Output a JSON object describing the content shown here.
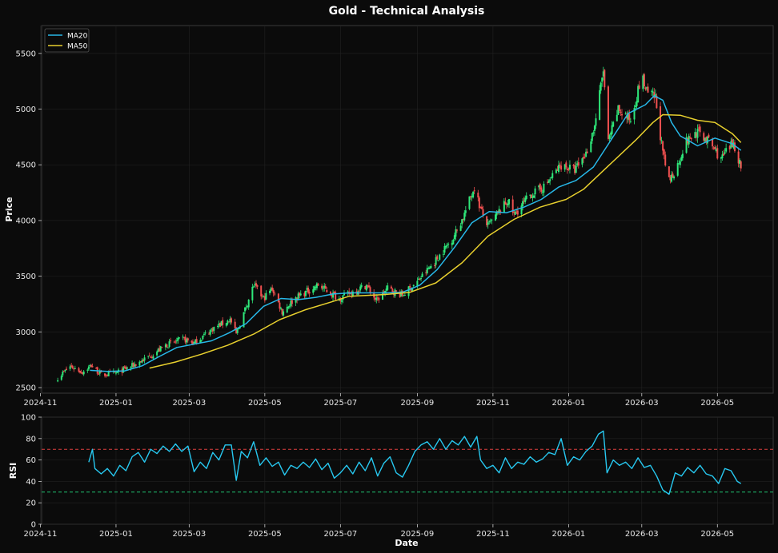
{
  "colors": {
    "background": "#0b0b0b",
    "frame": "#3a3a3a",
    "grid": "#222222",
    "up": "#2ee87a",
    "down": "#f05050",
    "ma20": "#27b8e8",
    "ma50": "#e8d02e",
    "rsi": "#27c8f0",
    "overbought": "#e04040",
    "oversold": "#20c070"
  },
  "chart_data": [
    {
      "type": "candlestick",
      "title": "Gold - Technical Analysis",
      "ylabel": "Price",
      "xlabel": "",
      "x_range": [
        "2024-11-02",
        "2026-06-15"
      ],
      "ylim": [
        2450,
        5750
      ],
      "yticks": [
        2500,
        3000,
        3500,
        4000,
        4500,
        5000,
        5500
      ],
      "xticks": [
        "2024-11-01",
        "2025-01-01",
        "2025-03-01",
        "2025-05-01",
        "2025-07-01",
        "2025-09-01",
        "2025-11-01",
        "2026-01-01",
        "2026-03-01",
        "2026-05-01"
      ],
      "xtick_labels": [
        "2024-11",
        "2025-01",
        "2025-03",
        "2025-05",
        "2025-07",
        "2025-09",
        "2025-11",
        "2026-01",
        "2026-03",
        "2026-05"
      ],
      "grid": true,
      "legend_position": "top-left",
      "price_path": [
        [
          "2024-11-15",
          2590
        ],
        [
          "2024-11-25",
          2690
        ],
        [
          "2024-12-05",
          2640
        ],
        [
          "2024-12-12",
          2700
        ],
        [
          "2024-12-20",
          2615
        ],
        [
          "2025-01-01",
          2630
        ],
        [
          "2025-01-15",
          2700
        ],
        [
          "2025-01-31",
          2800
        ],
        [
          "2025-02-10",
          2880
        ],
        [
          "2025-02-24",
          2935
        ],
        [
          "2025-03-05",
          2900
        ],
        [
          "2025-03-20",
          3030
        ],
        [
          "2025-04-03",
          3110
        ],
        [
          "2025-04-08",
          2980
        ],
        [
          "2025-04-22",
          3420
        ],
        [
          "2025-04-30",
          3300
        ],
        [
          "2025-05-07",
          3390
        ],
        [
          "2025-05-15",
          3180
        ],
        [
          "2025-05-25",
          3300
        ],
        [
          "2025-06-13",
          3420
        ],
        [
          "2025-06-30",
          3300
        ],
        [
          "2025-07-22",
          3420
        ],
        [
          "2025-07-30",
          3280
        ],
        [
          "2025-08-08",
          3390
        ],
        [
          "2025-08-20",
          3330
        ],
        [
          "2025-09-01",
          3450
        ],
        [
          "2025-09-15",
          3630
        ],
        [
          "2025-09-30",
          3850
        ],
        [
          "2025-10-08",
          4030
        ],
        [
          "2025-10-17",
          4300
        ],
        [
          "2025-10-22",
          4100
        ],
        [
          "2025-10-28",
          3950
        ],
        [
          "2025-11-13",
          4180
        ],
        [
          "2025-11-18",
          4050
        ],
        [
          "2025-12-01",
          4230
        ],
        [
          "2025-12-12",
          4300
        ],
        [
          "2025-12-26",
          4500
        ],
        [
          "2026-01-06",
          4450
        ],
        [
          "2026-01-15",
          4600
        ],
        [
          "2026-01-22",
          4850
        ],
        [
          "2026-01-29",
          5350
        ],
        [
          "2026-02-02",
          4700
        ],
        [
          "2026-02-10",
          5000
        ],
        [
          "2026-02-20",
          4900
        ],
        [
          "2026-03-01",
          5300
        ],
        [
          "2026-03-05",
          5150
        ],
        [
          "2026-03-12",
          5100
        ],
        [
          "2026-03-18",
          4600
        ],
        [
          "2026-03-23",
          4350
        ],
        [
          "2026-03-30",
          4500
        ],
        [
          "2026-04-05",
          4700
        ],
        [
          "2026-04-15",
          4800
        ],
        [
          "2026-04-25",
          4700
        ],
        [
          "2026-05-04",
          4550
        ],
        [
          "2026-05-14",
          4700
        ],
        [
          "2026-05-20",
          4480
        ]
      ],
      "series": [
        {
          "name": "MA20",
          "values": [
            [
              "2024-12-11",
              2655
            ],
            [
              "2024-12-25",
              2645
            ],
            [
              "2025-01-08",
              2650
            ],
            [
              "2025-01-22",
              2695
            ],
            [
              "2025-02-05",
              2780
            ],
            [
              "2025-02-19",
              2860
            ],
            [
              "2025-03-05",
              2890
            ],
            [
              "2025-03-19",
              2920
            ],
            [
              "2025-04-02",
              2990
            ],
            [
              "2025-04-16",
              3075
            ],
            [
              "2025-04-30",
              3230
            ],
            [
              "2025-05-14",
              3300
            ],
            [
              "2025-05-28",
              3290
            ],
            [
              "2025-06-11",
              3310
            ],
            [
              "2025-06-25",
              3340
            ],
            [
              "2025-07-09",
              3350
            ],
            [
              "2025-07-23",
              3350
            ],
            [
              "2025-08-06",
              3350
            ],
            [
              "2025-08-20",
              3355
            ],
            [
              "2025-09-03",
              3420
            ],
            [
              "2025-09-17",
              3560
            ],
            [
              "2025-10-01",
              3760
            ],
            [
              "2025-10-15",
              3980
            ],
            [
              "2025-10-29",
              4080
            ],
            [
              "2025-11-12",
              4070
            ],
            [
              "2025-11-26",
              4120
            ],
            [
              "2025-12-10",
              4190
            ],
            [
              "2025-12-24",
              4300
            ],
            [
              "2026-01-07",
              4360
            ],
            [
              "2026-01-21",
              4480
            ],
            [
              "2026-02-04",
              4720
            ],
            [
              "2026-02-18",
              4960
            ],
            [
              "2026-03-04",
              5040
            ],
            [
              "2026-03-11",
              5120
            ],
            [
              "2026-03-18",
              5080
            ],
            [
              "2026-03-25",
              4880
            ],
            [
              "2026-04-01",
              4760
            ],
            [
              "2026-04-15",
              4670
            ],
            [
              "2026-04-29",
              4740
            ],
            [
              "2026-05-13",
              4690
            ],
            [
              "2026-05-20",
              4630
            ]
          ]
        },
        {
          "name": "MA50",
          "values": [
            [
              "2025-01-28",
              2675
            ],
            [
              "2025-02-18",
              2730
            ],
            [
              "2025-03-11",
              2800
            ],
            [
              "2025-04-01",
              2880
            ],
            [
              "2025-04-22",
              2980
            ],
            [
              "2025-05-13",
              3110
            ],
            [
              "2025-06-03",
              3200
            ],
            [
              "2025-06-24",
              3270
            ],
            [
              "2025-07-08",
              3320
            ],
            [
              "2025-08-05",
              3335
            ],
            [
              "2025-08-26",
              3355
            ],
            [
              "2025-09-16",
              3440
            ],
            [
              "2025-10-07",
              3620
            ],
            [
              "2025-10-28",
              3860
            ],
            [
              "2025-11-18",
              4010
            ],
            [
              "2025-12-09",
              4120
            ],
            [
              "2025-12-30",
              4190
            ],
            [
              "2026-01-13",
              4280
            ],
            [
              "2026-02-03",
              4500
            ],
            [
              "2026-02-24",
              4720
            ],
            [
              "2026-03-10",
              4880
            ],
            [
              "2026-03-18",
              4950
            ],
            [
              "2026-04-01",
              4945
            ],
            [
              "2026-04-15",
              4900
            ],
            [
              "2026-04-29",
              4880
            ],
            [
              "2026-05-13",
              4780
            ],
            [
              "2026-05-20",
              4700
            ]
          ]
        }
      ]
    },
    {
      "type": "line",
      "title": "",
      "ylabel": "RSI",
      "xlabel": "Date",
      "x_range": [
        "2024-11-02",
        "2026-06-15"
      ],
      "ylim": [
        0,
        100
      ],
      "yticks": [
        0,
        20,
        40,
        60,
        80,
        100
      ],
      "xticks": [
        "2024-11-01",
        "2025-01-01",
        "2025-03-01",
        "2025-05-01",
        "2025-07-01",
        "2025-09-01",
        "2025-11-01",
        "2026-01-01",
        "2026-03-01",
        "2026-05-01"
      ],
      "xtick_labels": [
        "2024-11",
        "2025-01",
        "2025-03",
        "2025-05",
        "2025-07",
        "2025-09",
        "2025-11",
        "2026-01",
        "2026-03",
        "2026-05"
      ],
      "reference_lines": [
        70,
        30
      ],
      "grid": true,
      "series": [
        {
          "name": "",
          "values": [
            [
              "2024-12-10",
              58
            ],
            [
              "2024-12-13",
              70
            ],
            [
              "2024-12-15",
              52
            ],
            [
              "2024-12-20",
              47
            ],
            [
              "2024-12-25",
              52
            ],
            [
              "2024-12-30",
              45
            ],
            [
              "2025-01-04",
              55
            ],
            [
              "2025-01-09",
              50
            ],
            [
              "2025-01-14",
              63
            ],
            [
              "2025-01-19",
              67
            ],
            [
              "2025-01-24",
              58
            ],
            [
              "2025-01-29",
              70
            ],
            [
              "2025-02-03",
              66
            ],
            [
              "2025-02-08",
              73
            ],
            [
              "2025-02-13",
              68
            ],
            [
              "2025-02-18",
              75
            ],
            [
              "2025-02-23",
              68
            ],
            [
              "2025-02-28",
              73
            ],
            [
              "2025-03-05",
              49
            ],
            [
              "2025-03-10",
              58
            ],
            [
              "2025-03-15",
              52
            ],
            [
              "2025-03-20",
              67
            ],
            [
              "2025-03-25",
              60
            ],
            [
              "2025-03-30",
              74
            ],
            [
              "2025-04-04",
              74
            ],
            [
              "2025-04-08",
              41
            ],
            [
              "2025-04-12",
              68
            ],
            [
              "2025-04-17",
              62
            ],
            [
              "2025-04-22",
              77
            ],
            [
              "2025-04-27",
              55
            ],
            [
              "2025-05-02",
              62
            ],
            [
              "2025-05-07",
              54
            ],
            [
              "2025-05-12",
              58
            ],
            [
              "2025-05-17",
              46
            ],
            [
              "2025-05-22",
              55
            ],
            [
              "2025-05-27",
              52
            ],
            [
              "2025-06-01",
              58
            ],
            [
              "2025-06-06",
              53
            ],
            [
              "2025-06-11",
              61
            ],
            [
              "2025-06-16",
              51
            ],
            [
              "2025-06-21",
              57
            ],
            [
              "2025-06-26",
              43
            ],
            [
              "2025-07-01",
              48
            ],
            [
              "2025-07-06",
              55
            ],
            [
              "2025-07-11",
              47
            ],
            [
              "2025-07-16",
              58
            ],
            [
              "2025-07-21",
              50
            ],
            [
              "2025-07-26",
              62
            ],
            [
              "2025-07-31",
              45
            ],
            [
              "2025-08-05",
              57
            ],
            [
              "2025-08-10",
              63
            ],
            [
              "2025-08-15",
              48
            ],
            [
              "2025-08-20",
              44
            ],
            [
              "2025-08-25",
              55
            ],
            [
              "2025-08-30",
              68
            ],
            [
              "2025-09-04",
              74
            ],
            [
              "2025-09-09",
              77
            ],
            [
              "2025-09-14",
              70
            ],
            [
              "2025-09-19",
              80
            ],
            [
              "2025-09-24",
              70
            ],
            [
              "2025-09-29",
              78
            ],
            [
              "2025-10-04",
              74
            ],
            [
              "2025-10-09",
              82
            ],
            [
              "2025-10-14",
              72
            ],
            [
              "2025-10-19",
              82
            ],
            [
              "2025-10-22",
              60
            ],
            [
              "2025-10-27",
              52
            ],
            [
              "2025-11-01",
              55
            ],
            [
              "2025-11-06",
              48
            ],
            [
              "2025-11-11",
              62
            ],
            [
              "2025-11-16",
              52
            ],
            [
              "2025-11-21",
              58
            ],
            [
              "2025-11-26",
              56
            ],
            [
              "2025-12-01",
              63
            ],
            [
              "2025-12-06",
              58
            ],
            [
              "2025-12-11",
              61
            ],
            [
              "2025-12-16",
              67
            ],
            [
              "2025-12-21",
              65
            ],
            [
              "2025-12-26",
              80
            ],
            [
              "2025-12-31",
              55
            ],
            [
              "2026-01-05",
              63
            ],
            [
              "2026-01-10",
              60
            ],
            [
              "2026-01-15",
              68
            ],
            [
              "2026-01-20",
              73
            ],
            [
              "2026-01-25",
              84
            ],
            [
              "2026-01-29",
              87
            ],
            [
              "2026-02-01",
              48
            ],
            [
              "2026-02-06",
              60
            ],
            [
              "2026-02-11",
              55
            ],
            [
              "2026-02-16",
              58
            ],
            [
              "2026-02-21",
              52
            ],
            [
              "2026-02-26",
              62
            ],
            [
              "2026-03-03",
              53
            ],
            [
              "2026-03-08",
              55
            ],
            [
              "2026-03-13",
              45
            ],
            [
              "2026-03-18",
              32
            ],
            [
              "2026-03-23",
              28
            ],
            [
              "2026-03-28",
              48
            ],
            [
              "2026-04-02",
              45
            ],
            [
              "2026-04-07",
              53
            ],
            [
              "2026-04-12",
              48
            ],
            [
              "2026-04-17",
              55
            ],
            [
              "2026-04-22",
              47
            ],
            [
              "2026-04-27",
              45
            ],
            [
              "2026-05-02",
              38
            ],
            [
              "2026-05-07",
              52
            ],
            [
              "2026-05-12",
              50
            ],
            [
              "2026-05-17",
              40
            ],
            [
              "2026-05-20",
              38
            ]
          ]
        }
      ]
    }
  ]
}
